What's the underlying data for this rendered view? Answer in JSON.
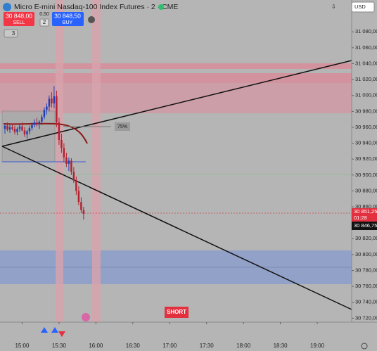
{
  "chart_data": {
    "type": "candlestick",
    "title": "Micro E-mini Nasdaq-100 Index Futures · 2 · CME",
    "x": [
      "14:46",
      "14:48",
      "14:50",
      "14:52",
      "14:54",
      "14:56",
      "14:58",
      "15:00",
      "15:02",
      "15:04",
      "15:06",
      "15:08",
      "15:10",
      "15:12",
      "15:14",
      "15:16",
      "15:18",
      "15:20",
      "15:22",
      "15:24",
      "15:26",
      "15:28",
      "15:30",
      "15:32",
      "15:34",
      "15:36",
      "15:38",
      "15:40",
      "15:42",
      "15:44",
      "15:46",
      "15:48",
      "15:50"
    ],
    "open": [
      30958,
      30962,
      30957,
      30960,
      30958,
      30954,
      30958,
      30961,
      30956,
      30951,
      30955,
      30959,
      30963,
      30966,
      30964,
      30967,
      30973,
      30982,
      30986,
      30996,
      30990,
      30999,
      30966,
      30944,
      30934,
      30922,
      30914,
      30918,
      30904,
      30893,
      30880,
      30866,
      30856
    ],
    "high": [
      30964,
      30966,
      30963,
      30965,
      30962,
      30960,
      30964,
      30966,
      30960,
      30957,
      30962,
      30966,
      30970,
      30972,
      30969,
      30976,
      30985,
      30990,
      31000,
      31004,
      31012,
      31006,
      30972,
      30952,
      30940,
      30928,
      30922,
      30921,
      30910,
      30898,
      30886,
      30872,
      30860
    ],
    "low": [
      30952,
      30955,
      30953,
      30956,
      30951,
      30950,
      30954,
      30955,
      30948,
      30946,
      30951,
      30956,
      30960,
      30961,
      30958,
      30963,
      30970,
      30976,
      30980,
      30985,
      30984,
      30960,
      30938,
      30928,
      30916,
      30910,
      30905,
      30900,
      30890,
      30875,
      30862,
      30852,
      30844
    ],
    "close": [
      30962,
      30957,
      30960,
      30958,
      30954,
      30958,
      30961,
      30956,
      30951,
      30955,
      30959,
      30963,
      30966,
      30964,
      30967,
      30973,
      30982,
      30986,
      30996,
      30990,
      30999,
      30966,
      30944,
      30934,
      30922,
      30914,
      30918,
      30904,
      30893,
      30880,
      30866,
      30856,
      30851.25
    ],
    "up_color": "#1f3fb8",
    "down_color": "#b3202e",
    "xlim": [
      "14:42",
      "19:28"
    ],
    "xticks": [
      "15:00",
      "15:30",
      "16:00",
      "16:30",
      "17:00",
      "17:30",
      "18:00",
      "18:30",
      "19:00"
    ],
    "ylim": [
      30715,
      31120
    ],
    "yticks": [
      {
        "value": 31080,
        "label": "31 080,00"
      },
      {
        "value": 31060,
        "label": "31 060,00"
      },
      {
        "value": 31040,
        "label": "31 040,00"
      },
      {
        "value": 31020,
        "label": "31 020,00"
      },
      {
        "value": 31000,
        "label": "31 000,00"
      },
      {
        "value": 30980,
        "label": "30 980,00"
      },
      {
        "value": 30960,
        "label": "30 960,00"
      },
      {
        "value": 30940,
        "label": "30 940,00"
      },
      {
        "value": 30920,
        "label": "30 920,00"
      },
      {
        "value": 30900,
        "label": "30 900,00"
      },
      {
        "value": 30880,
        "label": "30 880,00"
      },
      {
        "value": 30860,
        "label": "30 860,00"
      },
      {
        "value": 30840,
        "label": "30 840,00"
      },
      {
        "value": 30820,
        "label": "30 820,00"
      },
      {
        "value": 30800,
        "label": "30 800,00"
      },
      {
        "value": 30780,
        "label": "30 780,00"
      },
      {
        "value": 30760,
        "label": "30 760,00"
      },
      {
        "value": 30740,
        "label": "30 740,00"
      },
      {
        "value": 30720,
        "label": "30 720,00"
      }
    ],
    "last_price": {
      "value": 30851.25,
      "label": "30 851,25"
    },
    "countdown": "01:28",
    "bid_price": {
      "value": 30846.75,
      "label": "30 846,75"
    }
  },
  "header": {
    "sell_price": "30 848,00",
    "sell_label": "SELL",
    "spread": "0,50",
    "quantity": "2",
    "buy_price": "30 848,50",
    "buy_label": "BUY",
    "indicators": "3",
    "currency": "USD"
  },
  "annotations": {
    "percent": "75%",
    "short": "SHORT"
  }
}
